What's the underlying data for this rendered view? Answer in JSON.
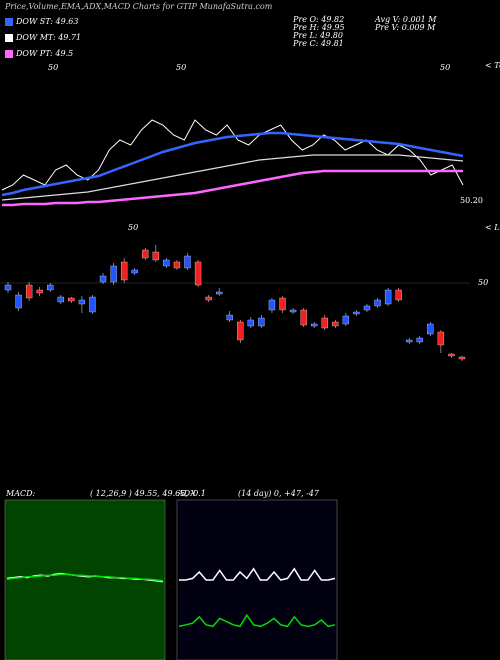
{
  "title": "Price,Volume,EMA,ADX,MACD Charts for GTIP MunafaSutra.com",
  "legend": [
    {
      "name": "DOW ST: 49.63",
      "color": "#3366ff"
    },
    {
      "name": "DOW MT: 49.71",
      "color": "#ffffff"
    },
    {
      "name": "DOW PT: 49.5",
      "color": "#ff66ff"
    }
  ],
  "quote": [
    "Pre  O: 49.82",
    "Pre  H: 49.95",
    "Pre  L: 49.80",
    "Pre  C: 49.81"
  ],
  "stats": [
    "Avg V: 0.001 M",
    "Pre  V: 0.009 M"
  ],
  "tops_label": "< Tops",
  "lows_label": "< Lows",
  "last_price": "50.20",
  "top_marks": [
    "50",
    "50",
    "50"
  ],
  "mid_mark": "50",
  "right_mark": "50",
  "chart_data": [
    {
      "type": "line",
      "ylim": [
        49.9,
        51.6
      ],
      "series": [
        {
          "name": "Price",
          "color": "#ffffff",
          "width": 1,
          "values": [
            50.3,
            50.35,
            50.45,
            50.4,
            50.35,
            50.5,
            50.55,
            50.45,
            50.4,
            50.5,
            50.7,
            50.8,
            50.75,
            50.9,
            51.0,
            50.95,
            50.85,
            50.8,
            51.0,
            50.9,
            50.85,
            50.95,
            50.8,
            50.75,
            50.85,
            50.9,
            50.95,
            50.8,
            50.7,
            50.75,
            50.85,
            50.8,
            50.7,
            50.75,
            50.8,
            50.7,
            50.65,
            50.75,
            50.7,
            50.6,
            50.45,
            50.5,
            50.55,
            50.35
          ]
        },
        {
          "name": "DOW ST",
          "color": "#3366ff",
          "width": 2.5,
          "values": [
            50.25,
            50.27,
            50.3,
            50.32,
            50.34,
            50.36,
            50.38,
            50.4,
            50.42,
            50.44,
            50.48,
            50.52,
            50.56,
            50.6,
            50.64,
            50.68,
            50.71,
            50.74,
            50.77,
            50.79,
            50.81,
            50.83,
            50.84,
            50.85,
            50.86,
            50.87,
            50.87,
            50.86,
            50.85,
            50.84,
            50.83,
            50.82,
            50.81,
            50.8,
            50.79,
            50.78,
            50.77,
            50.76,
            50.74,
            50.72,
            50.7,
            50.68,
            50.66,
            50.64
          ]
        },
        {
          "name": "DOW MT",
          "color": "#dddddd",
          "width": 1.2,
          "values": [
            50.2,
            50.21,
            50.22,
            50.23,
            50.24,
            50.25,
            50.26,
            50.27,
            50.28,
            50.3,
            50.32,
            50.34,
            50.36,
            50.38,
            50.4,
            50.42,
            50.44,
            50.46,
            50.48,
            50.5,
            50.52,
            50.54,
            50.56,
            50.58,
            50.6,
            50.61,
            50.62,
            50.63,
            50.64,
            50.65,
            50.65,
            50.65,
            50.65,
            50.65,
            50.65,
            50.65,
            50.65,
            50.65,
            50.64,
            50.63,
            50.62,
            50.61,
            50.6,
            50.59
          ]
        },
        {
          "name": "DOW PT",
          "color": "#ff66ff",
          "width": 2.5,
          "values": [
            50.15,
            50.15,
            50.16,
            50.16,
            50.16,
            50.17,
            50.17,
            50.17,
            50.18,
            50.18,
            50.19,
            50.2,
            50.21,
            50.22,
            50.23,
            50.24,
            50.25,
            50.26,
            50.27,
            50.29,
            50.31,
            50.33,
            50.35,
            50.37,
            50.39,
            50.41,
            50.43,
            50.45,
            50.47,
            50.48,
            50.49,
            50.49,
            50.49,
            50.49,
            50.49,
            50.49,
            50.49,
            50.49,
            50.49,
            50.49,
            50.49,
            50.49,
            50.49,
            50.49
          ]
        }
      ]
    },
    {
      "type": "candlestick",
      "ylim": [
        49.03,
        50.43
      ],
      "up_color": "#2255ff",
      "down_color": "#ee2222",
      "open": [
        49.93,
        49.75,
        49.98,
        49.93,
        49.93,
        49.81,
        49.85,
        49.79,
        49.71,
        50.01,
        50.01,
        50.21,
        50.1,
        50.33,
        50.31,
        50.17,
        50.21,
        50.15,
        50.21,
        49.86,
        49.89,
        49.63,
        49.61,
        49.57,
        49.57,
        49.73,
        49.85,
        49.71,
        49.73,
        49.57,
        49.65,
        49.61,
        49.59,
        49.69,
        49.73,
        49.77,
        49.79,
        49.93,
        49.41,
        49.41,
        49.49,
        49.51,
        49.29,
        49.26
      ],
      "high": [
        50.01,
        49.91,
        50.01,
        49.96,
        50.0,
        49.88,
        49.86,
        49.87,
        49.88,
        50.1,
        50.2,
        50.25,
        50.15,
        50.35,
        50.38,
        50.25,
        50.23,
        50.3,
        50.23,
        49.88,
        49.95,
        49.72,
        49.63,
        49.66,
        49.68,
        49.85,
        49.87,
        49.75,
        49.75,
        49.61,
        49.68,
        49.63,
        49.7,
        49.73,
        49.79,
        49.85,
        49.95,
        49.95,
        49.45,
        49.47,
        49.61,
        49.53,
        49.3,
        49.27
      ],
      "low": [
        49.9,
        49.72,
        49.82,
        49.87,
        49.91,
        49.79,
        49.8,
        49.7,
        49.69,
        49.99,
        49.98,
        50.0,
        50.08,
        50.23,
        50.21,
        50.15,
        50.13,
        50.13,
        49.96,
        49.81,
        49.87,
        49.61,
        49.4,
        49.55,
        49.55,
        49.7,
        49.7,
        49.69,
        49.56,
        49.55,
        49.53,
        49.55,
        49.57,
        49.67,
        49.71,
        49.75,
        49.77,
        49.81,
        49.39,
        49.39,
        49.47,
        49.3,
        49.25,
        49.22
      ],
      "close": [
        49.98,
        49.88,
        49.85,
        49.9,
        49.98,
        49.86,
        49.82,
        49.83,
        49.86,
        50.07,
        50.17,
        50.03,
        50.13,
        50.25,
        50.23,
        50.23,
        50.15,
        50.27,
        49.98,
        49.83,
        49.91,
        49.68,
        49.43,
        49.63,
        49.65,
        49.83,
        49.73,
        49.73,
        49.58,
        49.59,
        49.55,
        49.57,
        49.67,
        49.71,
        49.77,
        49.83,
        49.93,
        49.83,
        49.43,
        49.45,
        49.59,
        49.38,
        49.27,
        49.24
      ]
    },
    {
      "type": "line",
      "label": "MACD:",
      "params": "( 12,26,9 ) 49.55, 49.65, -0.1",
      "background": "#004400",
      "ylim": [
        -1,
        1
      ],
      "series": [
        {
          "name": "MACD",
          "color": "#ffffff",
          "values": [
            0.02,
            0.03,
            0.04,
            0.03,
            0.05,
            0.06,
            0.05,
            0.07,
            0.08,
            0.07,
            0.06,
            0.05,
            0.04,
            0.05,
            0.04,
            0.03,
            0.03,
            0.02,
            0.02,
            0.01,
            0.01,
            0.0,
            -0.01,
            -0.02
          ]
        },
        {
          "name": "Signal",
          "color": "#00dd00",
          "values": [
            0.01,
            0.02,
            0.03,
            0.04,
            0.04,
            0.05,
            0.06,
            0.06,
            0.07,
            0.07,
            0.06,
            0.06,
            0.05,
            0.05,
            0.04,
            0.04,
            0.03,
            0.03,
            0.02,
            0.02,
            0.01,
            0.01,
            0.0,
            -0.01
          ]
        }
      ]
    },
    {
      "type": "line",
      "label": "ADX",
      "params": "(14 day) 0, +47, -47",
      "background": "#000011",
      "ylim": [
        0,
        100
      ],
      "series": [
        {
          "name": "ADX",
          "color": "#ffffff",
          "values": [
            50,
            50,
            51,
            55,
            50,
            50,
            56,
            50,
            50,
            55,
            51,
            57,
            50,
            50,
            55,
            50,
            51,
            57,
            50,
            50,
            56,
            50,
            50,
            51
          ]
        },
        {
          "name": "DI",
          "color": "#00dd00",
          "values": [
            21,
            22,
            23,
            27,
            22,
            21,
            26,
            24,
            22,
            21,
            28,
            22,
            21,
            23,
            26,
            22,
            21,
            27,
            22,
            21,
            22,
            25,
            21,
            22
          ]
        }
      ]
    }
  ]
}
